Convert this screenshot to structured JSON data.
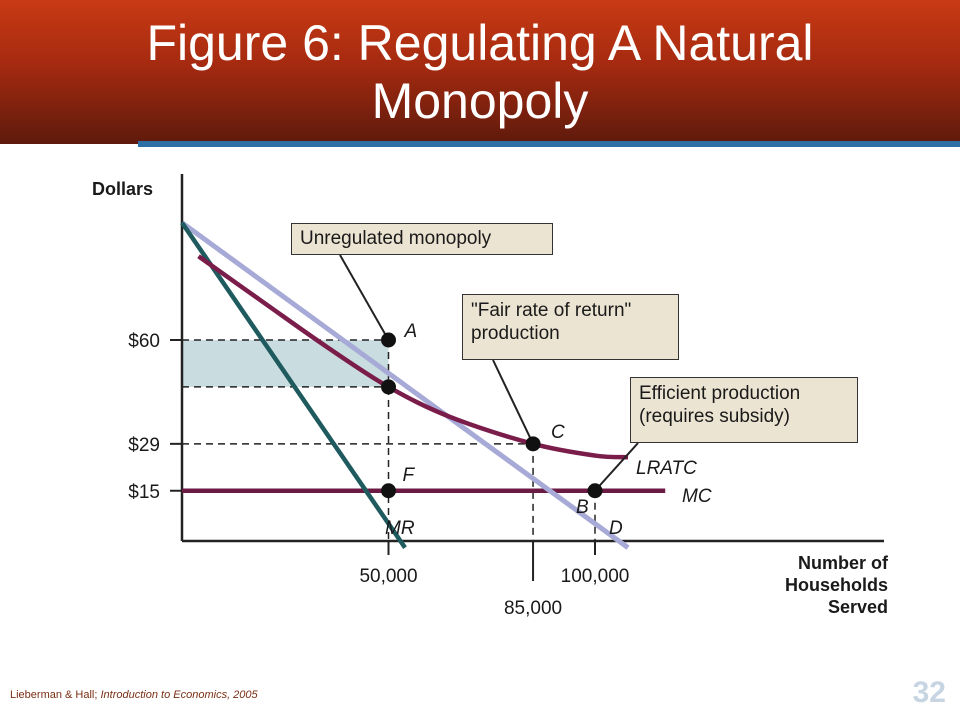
{
  "slide": {
    "title_line1": "Figure 6:  Regulating A Natural",
    "title_line2": "Monopoly",
    "footer_authors": "Lieberman & Hall; ",
    "footer_book": "Introduction to Economics, 2005",
    "page_number": "32"
  },
  "colors": {
    "title_gradient": "#b3300f",
    "accent_rule": "#2e6fa6",
    "demand_curve": "#a7aad6",
    "mr_curve": "#1f5a5e",
    "lratc_curve": "#7a1d4a",
    "mc_curve": "#6b1a44",
    "shaded_area": "#c9dde0",
    "annotation_fill": "#ece4d2"
  },
  "chart_data": {
    "type": "line",
    "ylabel": "Dollars",
    "xlabel": [
      "Number of",
      "Households",
      "Served"
    ],
    "x_ticks": [
      {
        "value": 50000,
        "label": "50,000"
      },
      {
        "value": 85000,
        "label": "85,000"
      },
      {
        "value": 100000,
        "label": "100,000"
      }
    ],
    "y_ticks": [
      {
        "value": 60,
        "label": "$60"
      },
      {
        "value": 29,
        "label": "$29"
      },
      {
        "value": 15,
        "label": "$15"
      }
    ],
    "series": [
      {
        "name": "D",
        "label_id": "D",
        "points": [
          [
            0,
            95
          ],
          [
            108000,
            -2
          ]
        ]
      },
      {
        "name": "MR",
        "label_id": "MR",
        "points": [
          [
            0,
            95
          ],
          [
            54000,
            -2
          ]
        ]
      },
      {
        "name": "LRATC",
        "label_id": "LRATC",
        "points": [
          [
            4000,
            85
          ],
          [
            20000,
            71
          ],
          [
            35000,
            58
          ],
          [
            50000,
            46
          ],
          [
            65000,
            37
          ],
          [
            85000,
            29
          ],
          [
            100000,
            25.5
          ],
          [
            108000,
            25
          ]
        ]
      },
      {
        "name": "MC",
        "label_id": "MC",
        "points": [
          [
            0,
            15
          ],
          [
            117000,
            15
          ]
        ]
      }
    ],
    "points": [
      {
        "label": "A",
        "x": 50000,
        "y": 60
      },
      {
        "label": "",
        "x": 50000,
        "y": 46
      },
      {
        "label": "C",
        "x": 85000,
        "y": 29
      },
      {
        "label": "F",
        "x": 50000,
        "y": 15
      },
      {
        "label": "B",
        "x": 100000,
        "y": 15
      }
    ],
    "shaded_region": {
      "x": [
        0,
        50000
      ],
      "y": [
        46,
        60
      ]
    },
    "annotations": [
      {
        "id": "unregulated",
        "lines": [
          "Unregulated monopoly"
        ],
        "target": "A"
      },
      {
        "id": "fair",
        "lines": [
          "\"Fair rate of return\"",
          "production"
        ],
        "target": "C"
      },
      {
        "id": "efficient",
        "lines": [
          "Efficient production",
          "(requires subsidy)"
        ],
        "target": "B"
      }
    ],
    "curve_labels": {
      "D": "D",
      "MR": "MR",
      "LRATC": "LRATC",
      "MC": "MC"
    }
  }
}
